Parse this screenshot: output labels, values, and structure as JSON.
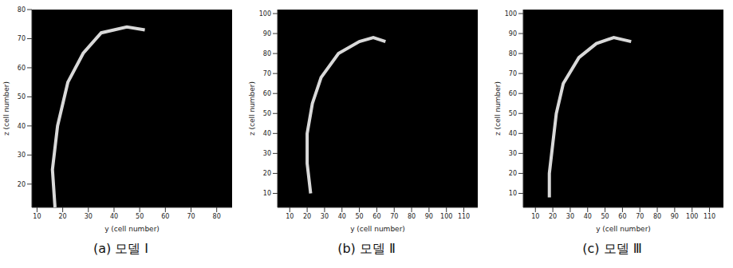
{
  "chart_data": [
    {
      "type": "scatter",
      "title": "(a) 모델 Ⅰ",
      "xlabel": "y (cell number)",
      "ylabel": "z (cell number)",
      "xlim": [
        8,
        86
      ],
      "xticks": [
        10,
        20,
        30,
        40,
        50,
        60,
        70,
        80
      ],
      "ylim": [
        12,
        80
      ],
      "yticks": [
        20,
        30,
        40,
        50,
        60,
        70,
        80
      ],
      "grid": false,
      "series": [
        {
          "color": "#d9d9d9",
          "line_style": "solid",
          "x": [
            17,
            16,
            18,
            22,
            28,
            35,
            45,
            52
          ],
          "y": [
            12,
            25,
            40,
            55,
            65,
            72,
            74,
            73
          ]
        }
      ]
    },
    {
      "type": "scatter",
      "title": "(b) 모델 Ⅱ",
      "xlabel": "y (cell number)",
      "ylabel": "z (cell number)",
      "xlim": [
        3,
        118
      ],
      "xticks": [
        10,
        20,
        30,
        40,
        50,
        60,
        70,
        80,
        90,
        100,
        110
      ],
      "ylim": [
        3,
        102
      ],
      "yticks": [
        10,
        20,
        30,
        40,
        50,
        60,
        70,
        80,
        90,
        100
      ],
      "grid": false,
      "series": [
        {
          "color": "#d9d9d9",
          "line_style": "solid",
          "x": [
            22,
            20,
            20,
            23,
            28,
            38,
            50,
            58,
            65
          ],
          "y": [
            10,
            25,
            40,
            55,
            68,
            80,
            86,
            88,
            86
          ]
        }
      ]
    },
    {
      "type": "scatter",
      "title": "(c) 모델 Ⅲ",
      "xlabel": "y (cell number)",
      "ylabel": "z (cell number)",
      "xlim": [
        3,
        118
      ],
      "xticks": [
        10,
        20,
        30,
        40,
        50,
        60,
        70,
        80,
        90,
        100,
        110
      ],
      "ylim": [
        3,
        102
      ],
      "yticks": [
        10,
        20,
        30,
        40,
        50,
        60,
        70,
        80,
        90,
        100
      ],
      "grid": false,
      "series": [
        {
          "color": "#d9d9d9",
          "line_style": "solid",
          "x": [
            18,
            18,
            20,
            22,
            26,
            35,
            45,
            55,
            65
          ],
          "y": [
            8,
            20,
            35,
            50,
            65,
            78,
            85,
            88,
            86
          ]
        }
      ]
    }
  ]
}
